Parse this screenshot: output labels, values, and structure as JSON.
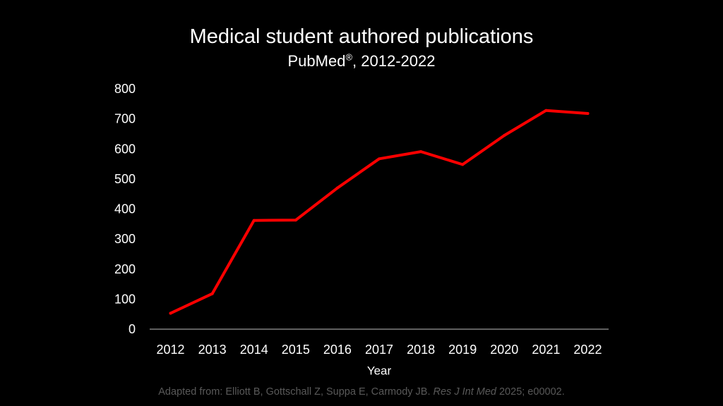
{
  "slide": {
    "title": "Medical student authored publications",
    "subtitle_main": "PubMed",
    "subtitle_mark": "®",
    "subtitle_rest": ", 2012-2022",
    "caption": {
      "before": "Adapted from: Elliott B, Gottschall Z, Suppa E, Carmody JB. ",
      "journal": "Res J Int Med",
      "after": " 2025; e00002."
    }
  },
  "colors": {
    "background": "#000000",
    "text": "#ffffff",
    "line": "#ff0000",
    "axis": "#bfbfbf",
    "caption": "#595959"
  },
  "chart_data": {
    "type": "line",
    "title": "Medical student authored publications",
    "subtitle": "PubMed®, 2012-2022",
    "xlabel": "Year",
    "ylabel": "",
    "categories": [
      "2012",
      "2013",
      "2014",
      "2015",
      "2016",
      "2017",
      "2018",
      "2019",
      "2020",
      "2021",
      "2022"
    ],
    "series": [
      {
        "values": [
          53,
          118,
          362,
          363,
          470,
          567,
          591,
          548,
          645,
          728,
          718
        ]
      }
    ],
    "ylim": [
      0,
      800
    ],
    "yticks": [
      0,
      100,
      200,
      300,
      400,
      500,
      600,
      700,
      800
    ],
    "grid": false,
    "legend": "none"
  }
}
